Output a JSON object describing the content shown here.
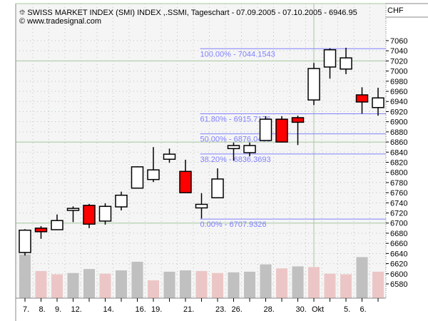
{
  "header": {
    "title": "SWISS MARKET INDEX (SMI) INDEX ,.SSMI, Tageschart - 07.09.2005 - 07.10.2005 - 6946.95",
    "copyright": "© www.tradesignal.com",
    "currency": "CHF",
    "title_icon": "candlestick-icon"
  },
  "colors": {
    "background": "#f5f5f5",
    "up_body": "#ffffff",
    "down_body": "#ff0000",
    "fib_line": "#8080ff",
    "volume_up": "#c0c0c0",
    "volume_down": "#ecc6c6",
    "grid_major": "#a8c8a0"
  },
  "chart_data": {
    "type": "candlestick",
    "title": "SWISS MARKET INDEX (SMI) INDEX ,.SSMI, Tageschart",
    "ylim": [
      6560,
      7080
    ],
    "yticks": [
      7060,
      7040,
      7020,
      7000,
      6980,
      6960,
      6940,
      6920,
      6900,
      6880,
      6860,
      6840,
      6820,
      6800,
      6780,
      6760,
      6740,
      6720,
      6700,
      6680,
      6660,
      6640,
      6620,
      6600,
      6580
    ],
    "xlabels": [
      {
        "index": 0,
        "label": "7."
      },
      {
        "index": 1,
        "label": "8."
      },
      {
        "index": 2,
        "label": "9."
      },
      {
        "index": 3,
        "label": "12."
      },
      {
        "index": 5,
        "label": "14."
      },
      {
        "index": 7,
        "label": "16."
      },
      {
        "index": 8,
        "label": "19."
      },
      {
        "index": 10,
        "label": "21."
      },
      {
        "index": 12,
        "label": "23."
      },
      {
        "index": 13,
        "label": "26."
      },
      {
        "index": 15,
        "label": "28."
      },
      {
        "index": 17,
        "label": "30."
      },
      {
        "index": 18,
        "label": "Okt"
      },
      {
        "index": 20,
        "label": "5."
      },
      {
        "index": 21,
        "label": "6."
      }
    ],
    "candles": [
      {
        "o": 6642,
        "h": 6688,
        "l": 6636,
        "c": 6686
      },
      {
        "o": 6690,
        "h": 6694,
        "l": 6669,
        "c": 6683
      },
      {
        "o": 6687,
        "h": 6717,
        "l": 6687,
        "c": 6705
      },
      {
        "o": 6725,
        "h": 6733,
        "l": 6702,
        "c": 6729
      },
      {
        "o": 6735,
        "h": 6738,
        "l": 6690,
        "c": 6698
      },
      {
        "o": 6704,
        "h": 6739,
        "l": 6697,
        "c": 6733
      },
      {
        "o": 6732,
        "h": 6762,
        "l": 6725,
        "c": 6755
      },
      {
        "o": 6769,
        "h": 6812,
        "l": 6769,
        "c": 6811
      },
      {
        "o": 6786,
        "h": 6850,
        "l": 6781,
        "c": 6805
      },
      {
        "o": 6826,
        "h": 6847,
        "l": 6819,
        "c": 6836
      },
      {
        "o": 6802,
        "h": 6825,
        "l": 6760,
        "c": 6760
      },
      {
        "o": 6730,
        "h": 6759,
        "l": 6709,
        "c": 6737
      },
      {
        "o": 6750,
        "h": 6808,
        "l": 6750,
        "c": 6787
      },
      {
        "o": 6847,
        "h": 6859,
        "l": 6823,
        "c": 6853
      },
      {
        "o": 6839,
        "h": 6859,
        "l": 6832,
        "c": 6853
      },
      {
        "o": 6863,
        "h": 6911,
        "l": 6863,
        "c": 6905
      },
      {
        "o": 6905,
        "h": 6911,
        "l": 6859,
        "c": 6860
      },
      {
        "o": 6908,
        "h": 6912,
        "l": 6854,
        "c": 6899
      },
      {
        "o": 6943,
        "h": 7016,
        "l": 6933,
        "c": 7005
      },
      {
        "o": 7008,
        "h": 7045,
        "l": 6985,
        "c": 7042
      },
      {
        "o": 7004,
        "h": 7046,
        "l": 6994,
        "c": 7026
      },
      {
        "o": 6953,
        "h": 6968,
        "l": 6916,
        "c": 6939
      },
      {
        "o": 6928,
        "h": 6967,
        "l": 6912,
        "c": 6947
      }
    ],
    "volume": {
      "values": [
        66,
        41,
        36,
        38,
        44,
        37,
        42,
        55,
        27,
        40,
        42,
        41,
        38,
        39,
        40,
        51,
        45,
        48,
        47,
        37,
        36,
        62,
        40
      ],
      "direction": [
        "up",
        "down",
        "down",
        "up",
        "up",
        "down",
        "up",
        "up",
        "down",
        "up",
        "up",
        "down",
        "down",
        "up",
        "up",
        "up",
        "down",
        "up",
        "down",
        "down",
        "down",
        "up",
        "down"
      ]
    },
    "fibonacci": {
      "start_index": 11,
      "levels": [
        {
          "pct": "100.00%",
          "value": 7044.1543,
          "label": "100.00% - 7044.1543"
        },
        {
          "pct": "61.80%",
          "value": 6915.7176,
          "label": "61.80% - 6915.7176"
        },
        {
          "pct": "50.00%",
          "value": 6876.0435,
          "label": "50.00% - 6876.0435"
        },
        {
          "pct": "38.20%",
          "value": 6836.3693,
          "label": "38.20% - 6836.3693"
        },
        {
          "pct": "0.00%",
          "value": 6707.9326,
          "label": "0.00% - 6707.9326"
        }
      ]
    },
    "major_grid_values": [
      7020,
      6860,
      6700
    ],
    "major_grid_index": 18
  }
}
